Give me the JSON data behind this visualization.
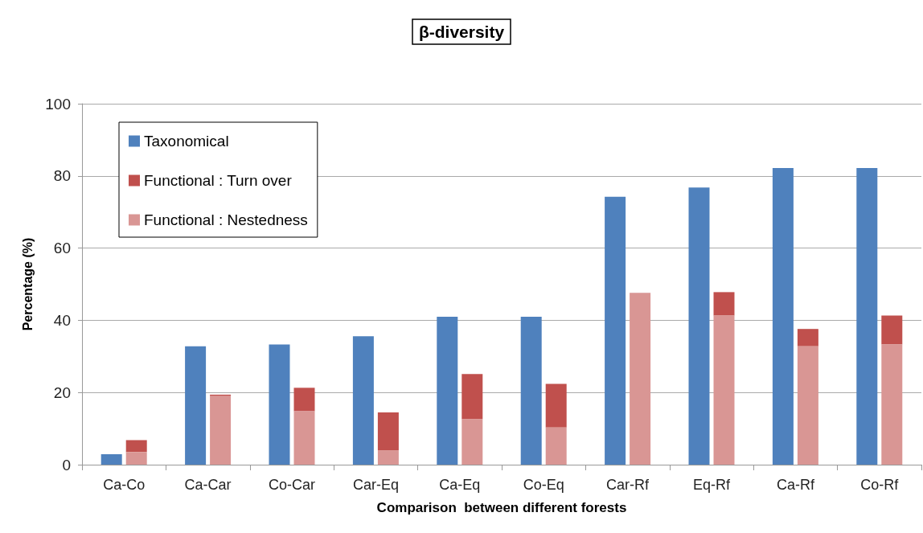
{
  "chart_data": {
    "type": "bar",
    "title": "β-diversity",
    "xlabel": "Comparison  between different forests",
    "ylabel": "Percentage (%)",
    "categories": [
      "Ca-Co",
      "Ca-Car",
      "Co-Car",
      "Car-Eq",
      "Ca-Eq",
      "Co-Eq",
      "Car-Rf",
      "Eq-Rf",
      "Ca-Rf",
      "Co-Rf"
    ],
    "series": [
      {
        "name": "Taxonomical",
        "color": "#4f81bd",
        "values": [
          2.9,
          32.8,
          33.3,
          35.6,
          41,
          41,
          74.2,
          76.8,
          82.2,
          82.2
        ]
      },
      {
        "name": "Functional : Turn over",
        "color": "#c0504d",
        "values": [
          3.3,
          0.4,
          6.5,
          10.5,
          12.5,
          12.1,
          null,
          6.5,
          4.8,
          8
        ],
        "base": [
          3.5,
          19,
          14.8,
          4,
          12.6,
          10.3,
          null,
          41.3,
          32.8,
          33.3
        ]
      },
      {
        "name": "Functional : Nestedness",
        "color": "#d99694",
        "values": [
          3.5,
          19,
          14.8,
          4,
          12.6,
          10.3,
          47.6,
          41.3,
          32.8,
          33.3
        ]
      }
    ],
    "ylim": [
      0,
      100
    ],
    "yticks": [
      0,
      20,
      40,
      60,
      80,
      100
    ],
    "grid": "y",
    "legend": "top left"
  }
}
